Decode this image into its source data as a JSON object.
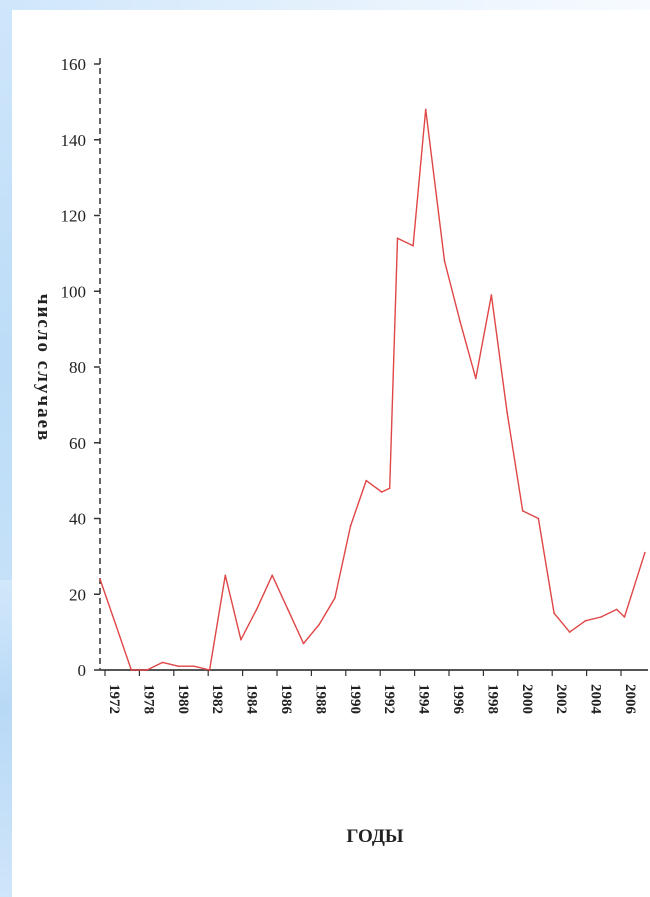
{
  "chart_data": {
    "type": "line",
    "title": "",
    "xlabel": "ГОДЫ",
    "ylabel": "число случаев",
    "ylim": [
      0,
      160
    ],
    "xlim": [
      1972,
      2007
    ],
    "y_ticks": [
      "0",
      "20",
      "40",
      "60",
      "80",
      "100",
      "120",
      "140",
      "160"
    ],
    "x_ticks": [
      "1972",
      "1978",
      "1980",
      "1982",
      "1984",
      "1986",
      "1988",
      "1990",
      "1992",
      "1994",
      "1996",
      "1998",
      "2000",
      "2002",
      "2004",
      "2006"
    ],
    "grid": false,
    "legend": "none",
    "series": [
      {
        "color": "#e04646",
        "x": [
          1972,
          1973,
          1974,
          1975,
          1976,
          1977,
          1978,
          1979,
          1980,
          1981,
          1982,
          1983,
          1984,
          1985,
          1986,
          1987,
          1988,
          1989,
          1990,
          1990.5,
          1991,
          1992,
          1992.8,
          1994,
          1995,
          1996,
          1997,
          1998,
          1999,
          2000,
          2001,
          2002,
          2003,
          2004,
          2005,
          2005.5,
          2006.8
        ],
        "y": [
          24,
          12,
          0,
          0,
          2,
          1,
          1,
          0,
          25,
          8,
          16,
          25,
          16,
          7,
          12,
          19,
          38,
          50,
          47,
          48,
          114,
          112,
          148,
          108,
          92,
          77,
          99,
          68,
          42,
          40,
          15,
          10,
          13,
          14,
          16,
          14,
          31
        ]
      }
    ]
  }
}
